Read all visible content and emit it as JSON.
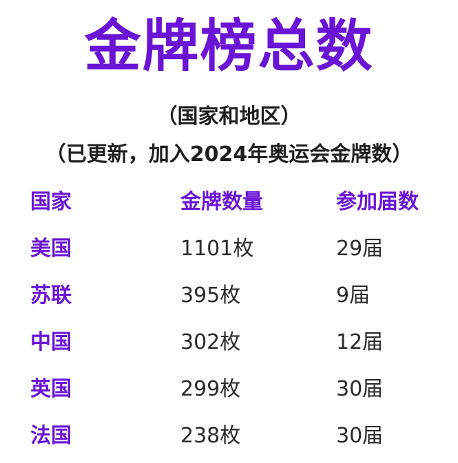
{
  "colors": {
    "accent": "#6a14d6",
    "header_text": "#6a14d6",
    "body_text": "#2a2a2a"
  },
  "title": "金牌榜总数",
  "subtitle_line1": "（国家和地区）",
  "subtitle_line2": "（已更新，加入2024年奥运会金牌数）",
  "table": {
    "headers": [
      "国家",
      "金牌数量",
      "参加届数"
    ],
    "rows": [
      {
        "country": "美国",
        "medals": "1101枚",
        "editions": "29届"
      },
      {
        "country": "苏联",
        "medals": "395枚",
        "editions": "9届"
      },
      {
        "country": "中国",
        "medals": "302枚",
        "editions": "12届"
      },
      {
        "country": "英国",
        "medals": "299枚",
        "editions": "30届"
      },
      {
        "country": "法国",
        "medals": "238枚",
        "editions": "30届"
      }
    ]
  }
}
